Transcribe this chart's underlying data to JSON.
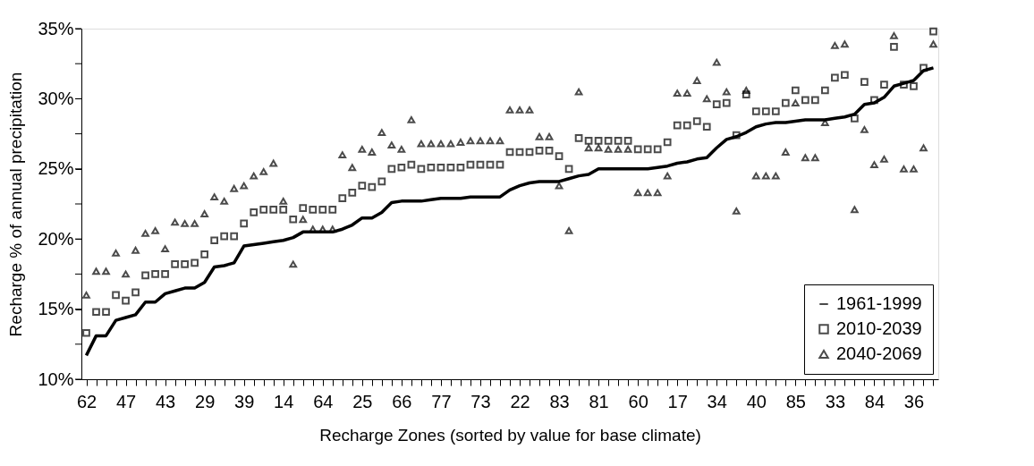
{
  "chart_data": {
    "type": "line",
    "xlabel": "Recharge Zones (sorted by value for base climate)",
    "ylabel": "Recharge % of annual precipitation",
    "categories": [
      "62",
      null,
      null,
      null,
      "47",
      null,
      null,
      null,
      "43",
      null,
      null,
      null,
      "29",
      null,
      null,
      null,
      "39",
      null,
      null,
      null,
      "14",
      null,
      null,
      null,
      "64",
      null,
      null,
      null,
      "25",
      null,
      null,
      null,
      "66",
      null,
      null,
      null,
      "77",
      null,
      null,
      null,
      "73",
      null,
      null,
      null,
      "22",
      null,
      null,
      null,
      "83",
      null,
      null,
      null,
      "81",
      null,
      null,
      null,
      "60",
      null,
      null,
      null,
      "17",
      null,
      null,
      null,
      "34",
      null,
      null,
      null,
      "40",
      null,
      null,
      null,
      "85",
      null,
      null,
      null,
      "33",
      null,
      null,
      null,
      "84",
      null,
      null,
      null,
      "36",
      null,
      null
    ],
    "series": [
      {
        "name": "1961-1999",
        "type": "line",
        "marker": "none",
        "color": "#000000",
        "values": [
          11.7,
          13.1,
          13.1,
          14.2,
          14.4,
          14.6,
          15.5,
          15.5,
          16.1,
          16.3,
          16.5,
          16.5,
          16.9,
          18.0,
          18.1,
          18.3,
          19.5,
          19.6,
          19.7,
          19.8,
          19.9,
          20.1,
          20.5,
          20.5,
          20.5,
          20.5,
          20.7,
          21.0,
          21.5,
          21.5,
          21.9,
          22.6,
          22.7,
          22.7,
          22.7,
          22.8,
          22.9,
          22.9,
          22.9,
          23.0,
          23.0,
          23.0,
          23.0,
          23.5,
          23.8,
          24.0,
          24.1,
          24.1,
          24.1,
          24.3,
          24.5,
          24.6,
          25.0,
          25.0,
          25.0,
          25.0,
          25.0,
          25.0,
          25.1,
          25.2,
          25.4,
          25.5,
          25.7,
          25.8,
          26.5,
          27.1,
          27.3,
          27.6,
          28.0,
          28.2,
          28.3,
          28.3,
          28.4,
          28.5,
          28.5,
          28.5,
          28.6,
          28.7,
          28.9,
          29.6,
          29.7,
          30.1,
          30.9,
          31.1,
          31.3,
          32.0,
          32.2
        ]
      },
      {
        "name": "2010-2039",
        "type": "scatter",
        "marker": "square",
        "color": "#000000",
        "values": [
          13.3,
          14.8,
          14.8,
          16.0,
          15.6,
          16.2,
          17.4,
          17.5,
          17.5,
          18.2,
          18.2,
          18.3,
          18.9,
          19.9,
          20.2,
          20.2,
          21.1,
          21.9,
          22.1,
          22.1,
          22.1,
          21.4,
          22.2,
          22.1,
          22.1,
          22.1,
          22.9,
          23.3,
          23.8,
          23.7,
          24.1,
          25.0,
          25.1,
          25.3,
          25.0,
          25.1,
          25.1,
          25.1,
          25.1,
          25.3,
          25.3,
          25.3,
          25.3,
          26.2,
          26.2,
          26.2,
          26.3,
          26.3,
          25.9,
          25.0,
          27.2,
          27.0,
          27.0,
          27.0,
          27.0,
          27.0,
          26.4,
          26.4,
          26.4,
          26.9,
          28.1,
          28.1,
          28.4,
          28.0,
          29.6,
          29.7,
          27.4,
          30.3,
          29.1,
          29.1,
          29.1,
          29.7,
          30.6,
          29.9,
          29.9,
          30.6,
          31.5,
          31.7,
          28.6,
          31.2,
          29.9,
          31.0,
          33.7,
          31.0,
          30.9,
          32.2,
          34.8
        ]
      },
      {
        "name": "2040-2069",
        "type": "scatter",
        "marker": "triangle",
        "color": "#000000",
        "values": [
          16.0,
          17.7,
          17.7,
          19.0,
          17.5,
          19.2,
          20.4,
          20.6,
          19.3,
          21.2,
          21.1,
          21.1,
          21.8,
          23.0,
          22.7,
          23.6,
          23.8,
          24.5,
          24.8,
          25.4,
          22.7,
          18.2,
          21.4,
          20.7,
          20.7,
          20.7,
          26.0,
          25.1,
          26.4,
          26.2,
          27.6,
          26.7,
          26.4,
          28.5,
          26.8,
          26.8,
          26.8,
          26.8,
          26.9,
          27.0,
          27.0,
          27.0,
          27.0,
          29.2,
          29.2,
          29.2,
          27.3,
          27.3,
          23.8,
          20.6,
          30.5,
          26.5,
          26.5,
          26.4,
          26.4,
          26.4,
          23.3,
          23.3,
          23.3,
          24.5,
          30.4,
          30.4,
          31.3,
          30.0,
          32.6,
          30.5,
          22.0,
          30.6,
          24.5,
          24.5,
          24.5,
          26.2,
          29.7,
          25.8,
          25.8,
          28.3,
          33.8,
          33.9,
          22.1,
          27.8,
          25.3,
          25.7,
          34.5,
          25.0,
          25.0,
          26.5,
          33.9
        ]
      }
    ],
    "ylim": [
      10,
      35
    ],
    "yticks": [
      {
        "value": 10,
        "label": "10%"
      },
      {
        "value": 12.5,
        "label": null
      },
      {
        "value": 15,
        "label": "15%"
      },
      {
        "value": 17.5,
        "label": null
      },
      {
        "value": 20,
        "label": "20%"
      },
      {
        "value": 22.5,
        "label": null
      },
      {
        "value": 25,
        "label": "25%"
      },
      {
        "value": 27.5,
        "label": null
      },
      {
        "value": 30,
        "label": "30%"
      },
      {
        "value": 32.5,
        "label": null
      },
      {
        "value": 35,
        "label": "35%"
      }
    ],
    "grid": false,
    "legend": "bottom right"
  }
}
